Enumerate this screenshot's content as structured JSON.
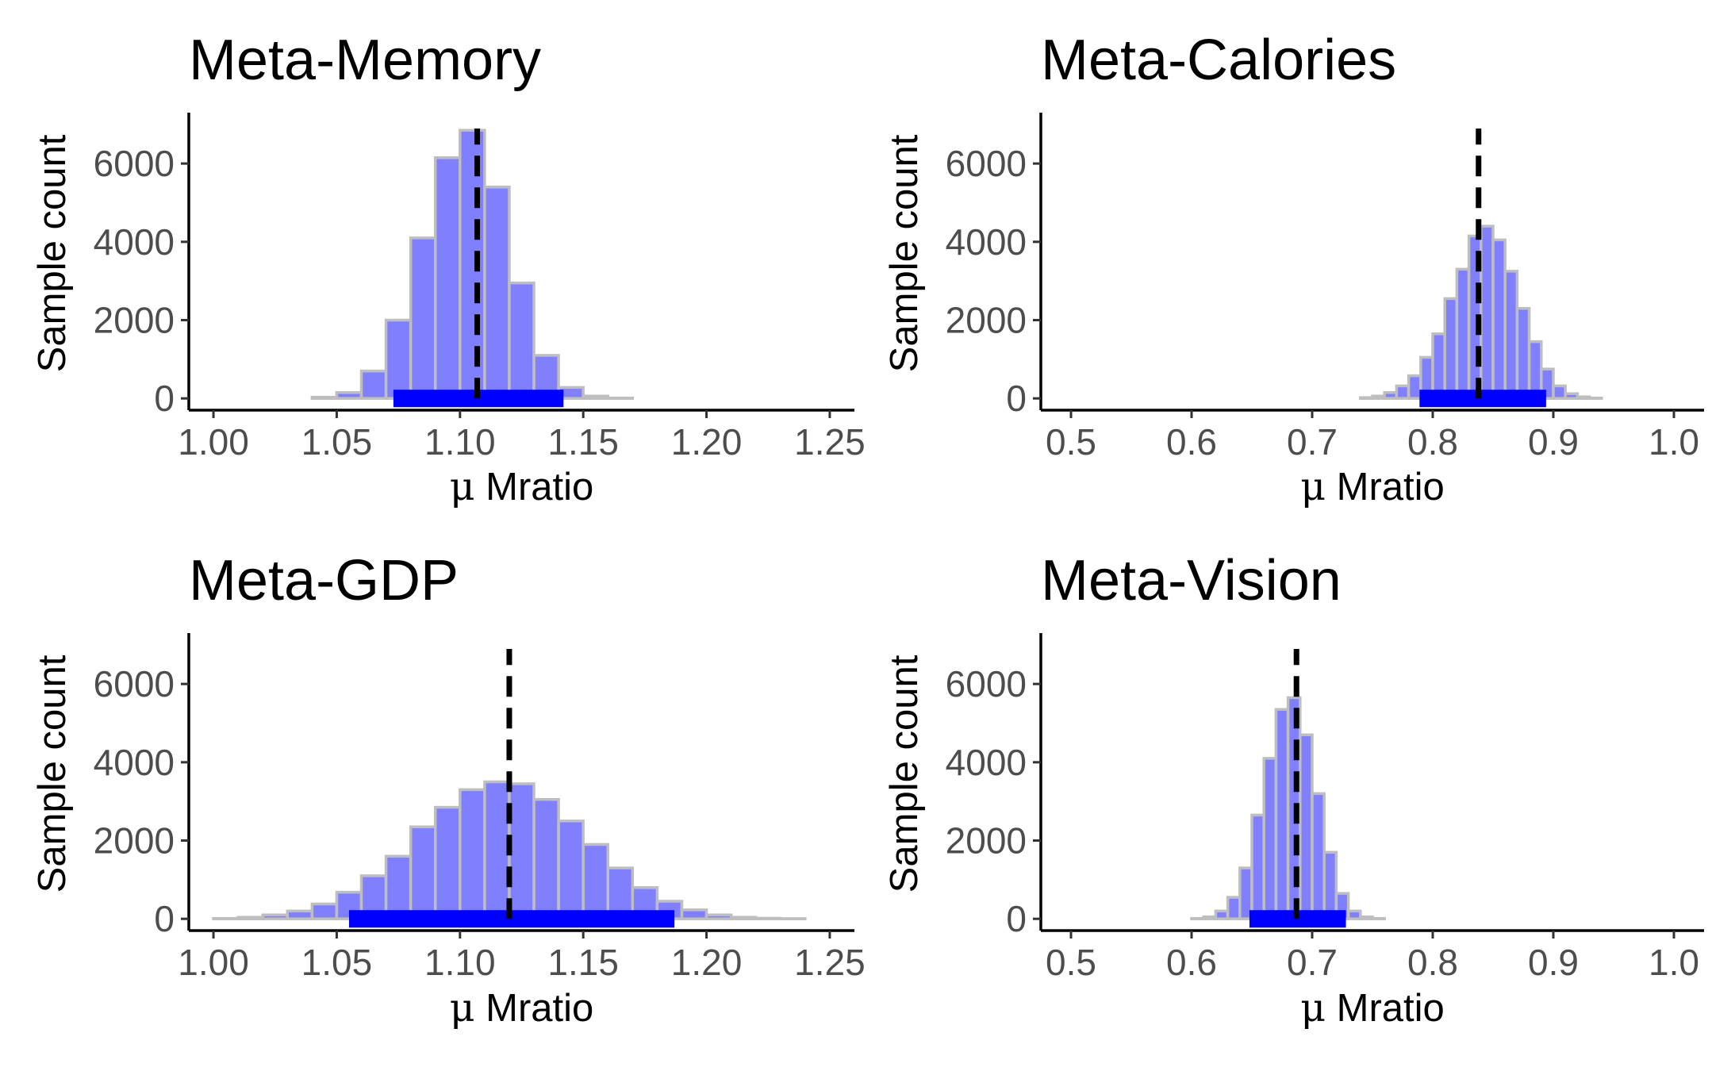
{
  "chart_data": [
    {
      "type": "histogram",
      "title": "Meta-Memory",
      "xlabel_symbol": "μ",
      "xlabel": "Mratio",
      "ylabel": "Sample count",
      "xlim": [
        0.99,
        1.26
      ],
      "ylim": [
        -300,
        7300
      ],
      "xticks": [
        1.0,
        1.05,
        1.1,
        1.15,
        1.2,
        1.25
      ],
      "xtick_labels": [
        "1.00",
        "1.05",
        "1.10",
        "1.15",
        "1.20",
        "1.25"
      ],
      "yticks": [
        0,
        2000,
        4000,
        6000
      ],
      "ytick_labels": [
        "0",
        "2000",
        "4000",
        "6000"
      ],
      "bin_width": 0.01,
      "bins": [
        {
          "x": 1.005,
          "count": 0
        },
        {
          "x": 1.015,
          "count": 0
        },
        {
          "x": 1.025,
          "count": 0
        },
        {
          "x": 1.035,
          "count": 0
        },
        {
          "x": 1.045,
          "count": 30
        },
        {
          "x": 1.055,
          "count": 150
        },
        {
          "x": 1.065,
          "count": 700
        },
        {
          "x": 1.075,
          "count": 2000
        },
        {
          "x": 1.085,
          "count": 4100
        },
        {
          "x": 1.095,
          "count": 6150
        },
        {
          "x": 1.105,
          "count": 6850
        },
        {
          "x": 1.115,
          "count": 5400
        },
        {
          "x": 1.125,
          "count": 2950
        },
        {
          "x": 1.135,
          "count": 1100
        },
        {
          "x": 1.145,
          "count": 280
        },
        {
          "x": 1.155,
          "count": 60
        },
        {
          "x": 1.165,
          "count": 10
        },
        {
          "x": 1.175,
          "count": 0
        },
        {
          "x": 1.185,
          "count": 0
        },
        {
          "x": 1.195,
          "count": 0
        },
        {
          "x": 1.205,
          "count": 0
        },
        {
          "x": 1.215,
          "count": 0
        },
        {
          "x": 1.225,
          "count": 0
        },
        {
          "x": 1.235,
          "count": 0
        },
        {
          "x": 1.245,
          "count": 0
        }
      ],
      "mean": 1.107,
      "hdi": [
        1.073,
        1.142
      ],
      "colors": {
        "fill": "#8080ff",
        "outline": "#bebebe",
        "hdi": "#0000ff",
        "mean_line": "#000000"
      }
    },
    {
      "type": "histogram",
      "title": "Meta-Calories",
      "xlabel_symbol": "μ",
      "xlabel": "Mratio",
      "ylabel": "Sample count",
      "xlim": [
        0.475,
        1.025
      ],
      "ylim": [
        -300,
        7300
      ],
      "xticks": [
        0.5,
        0.6,
        0.7,
        0.8,
        0.9,
        1.0
      ],
      "xtick_labels": [
        "0.5",
        "0.6",
        "0.7",
        "0.8",
        "0.9",
        "1.0"
      ],
      "yticks": [
        0,
        2000,
        4000,
        6000
      ],
      "ytick_labels": [
        "0",
        "2000",
        "4000",
        "6000"
      ],
      "bin_width": 0.01,
      "bins": [
        {
          "x": 0.505,
          "count": 0
        },
        {
          "x": 0.515,
          "count": 0
        },
        {
          "x": 0.525,
          "count": 0
        },
        {
          "x": 0.535,
          "count": 0
        },
        {
          "x": 0.545,
          "count": 0
        },
        {
          "x": 0.555,
          "count": 0
        },
        {
          "x": 0.565,
          "count": 0
        },
        {
          "x": 0.575,
          "count": 0
        },
        {
          "x": 0.585,
          "count": 0
        },
        {
          "x": 0.595,
          "count": 0
        },
        {
          "x": 0.605,
          "count": 0
        },
        {
          "x": 0.615,
          "count": 0
        },
        {
          "x": 0.625,
          "count": 0
        },
        {
          "x": 0.635,
          "count": 0
        },
        {
          "x": 0.645,
          "count": 0
        },
        {
          "x": 0.655,
          "count": 0
        },
        {
          "x": 0.665,
          "count": 0
        },
        {
          "x": 0.675,
          "count": 0
        },
        {
          "x": 0.685,
          "count": 0
        },
        {
          "x": 0.695,
          "count": 0
        },
        {
          "x": 0.705,
          "count": 0
        },
        {
          "x": 0.715,
          "count": 0
        },
        {
          "x": 0.725,
          "count": 0
        },
        {
          "x": 0.735,
          "count": 0
        },
        {
          "x": 0.745,
          "count": 20
        },
        {
          "x": 0.755,
          "count": 60
        },
        {
          "x": 0.765,
          "count": 150
        },
        {
          "x": 0.775,
          "count": 320
        },
        {
          "x": 0.785,
          "count": 580
        },
        {
          "x": 0.795,
          "count": 1050
        },
        {
          "x": 0.805,
          "count": 1650
        },
        {
          "x": 0.815,
          "count": 2550
        },
        {
          "x": 0.825,
          "count": 3300
        },
        {
          "x": 0.835,
          "count": 4150
        },
        {
          "x": 0.845,
          "count": 4400
        },
        {
          "x": 0.855,
          "count": 4050
        },
        {
          "x": 0.865,
          "count": 3250
        },
        {
          "x": 0.875,
          "count": 2300
        },
        {
          "x": 0.885,
          "count": 1450
        },
        {
          "x": 0.895,
          "count": 750
        },
        {
          "x": 0.905,
          "count": 320
        },
        {
          "x": 0.915,
          "count": 120
        },
        {
          "x": 0.925,
          "count": 40
        },
        {
          "x": 0.935,
          "count": 10
        },
        {
          "x": 0.945,
          "count": 0
        },
        {
          "x": 0.955,
          "count": 0
        },
        {
          "x": 0.965,
          "count": 0
        },
        {
          "x": 0.975,
          "count": 0
        },
        {
          "x": 0.985,
          "count": 0
        },
        {
          "x": 0.995,
          "count": 0
        }
      ],
      "mean": 0.838,
      "hdi": [
        0.789,
        0.894
      ],
      "colors": {
        "fill": "#8080ff",
        "outline": "#bebebe",
        "hdi": "#0000ff",
        "mean_line": "#000000"
      }
    },
    {
      "type": "histogram",
      "title": "Meta-GDP",
      "xlabel_symbol": "μ",
      "xlabel": "Mratio",
      "ylabel": "Sample count",
      "xlim": [
        0.99,
        1.26
      ],
      "ylim": [
        -300,
        7300
      ],
      "xticks": [
        1.0,
        1.05,
        1.1,
        1.15,
        1.2,
        1.25
      ],
      "xtick_labels": [
        "1.00",
        "1.05",
        "1.10",
        "1.15",
        "1.20",
        "1.25"
      ],
      "yticks": [
        0,
        2000,
        4000,
        6000
      ],
      "ytick_labels": [
        "0",
        "2000",
        "4000",
        "6000"
      ],
      "bin_width": 0.01,
      "bins": [
        {
          "x": 1.005,
          "count": 10
        },
        {
          "x": 1.015,
          "count": 40
        },
        {
          "x": 1.025,
          "count": 100
        },
        {
          "x": 1.035,
          "count": 200
        },
        {
          "x": 1.045,
          "count": 380
        },
        {
          "x": 1.055,
          "count": 680
        },
        {
          "x": 1.065,
          "count": 1100
        },
        {
          "x": 1.075,
          "count": 1600
        },
        {
          "x": 1.085,
          "count": 2350
        },
        {
          "x": 1.095,
          "count": 2850
        },
        {
          "x": 1.105,
          "count": 3300
        },
        {
          "x": 1.115,
          "count": 3500
        },
        {
          "x": 1.125,
          "count": 3450
        },
        {
          "x": 1.135,
          "count": 3050
        },
        {
          "x": 1.145,
          "count": 2500
        },
        {
          "x": 1.155,
          "count": 1900
        },
        {
          "x": 1.165,
          "count": 1300
        },
        {
          "x": 1.175,
          "count": 800
        },
        {
          "x": 1.185,
          "count": 450
        },
        {
          "x": 1.195,
          "count": 230
        },
        {
          "x": 1.205,
          "count": 100
        },
        {
          "x": 1.215,
          "count": 40
        },
        {
          "x": 1.225,
          "count": 15
        },
        {
          "x": 1.235,
          "count": 5
        },
        {
          "x": 1.245,
          "count": 0
        }
      ],
      "mean": 1.12,
      "hdi": [
        1.055,
        1.187
      ],
      "colors": {
        "fill": "#8080ff",
        "outline": "#bebebe",
        "hdi": "#0000ff",
        "mean_line": "#000000"
      }
    },
    {
      "type": "histogram",
      "title": "Meta-Vision",
      "xlabel_symbol": "μ",
      "xlabel": "Mratio",
      "ylabel": "Sample count",
      "xlim": [
        0.475,
        1.025
      ],
      "ylim": [
        -300,
        7300
      ],
      "xticks": [
        0.5,
        0.6,
        0.7,
        0.8,
        0.9,
        1.0
      ],
      "xtick_labels": [
        "0.5",
        "0.6",
        "0.7",
        "0.8",
        "0.9",
        "1.0"
      ],
      "yticks": [
        0,
        2000,
        4000,
        6000
      ],
      "ytick_labels": [
        "0",
        "2000",
        "4000",
        "6000"
      ],
      "bin_width": 0.01,
      "bins": [
        {
          "x": 0.505,
          "count": 0
        },
        {
          "x": 0.515,
          "count": 0
        },
        {
          "x": 0.525,
          "count": 0
        },
        {
          "x": 0.535,
          "count": 0
        },
        {
          "x": 0.545,
          "count": 0
        },
        {
          "x": 0.555,
          "count": 0
        },
        {
          "x": 0.565,
          "count": 0
        },
        {
          "x": 0.575,
          "count": 0
        },
        {
          "x": 0.585,
          "count": 0
        },
        {
          "x": 0.595,
          "count": 0
        },
        {
          "x": 0.605,
          "count": 10
        },
        {
          "x": 0.615,
          "count": 50
        },
        {
          "x": 0.625,
          "count": 200
        },
        {
          "x": 0.635,
          "count": 550
        },
        {
          "x": 0.645,
          "count": 1300
        },
        {
          "x": 0.655,
          "count": 2650
        },
        {
          "x": 0.665,
          "count": 4100
        },
        {
          "x": 0.675,
          "count": 5350
        },
        {
          "x": 0.685,
          "count": 5650
        },
        {
          "x": 0.695,
          "count": 4700
        },
        {
          "x": 0.705,
          "count": 3200
        },
        {
          "x": 0.715,
          "count": 1700
        },
        {
          "x": 0.725,
          "count": 650
        },
        {
          "x": 0.735,
          "count": 200
        },
        {
          "x": 0.745,
          "count": 50
        },
        {
          "x": 0.755,
          "count": 10
        },
        {
          "x": 0.765,
          "count": 0
        },
        {
          "x": 0.775,
          "count": 0
        },
        {
          "x": 0.785,
          "count": 0
        },
        {
          "x": 0.795,
          "count": 0
        },
        {
          "x": 0.805,
          "count": 0
        },
        {
          "x": 0.815,
          "count": 0
        },
        {
          "x": 0.825,
          "count": 0
        },
        {
          "x": 0.835,
          "count": 0
        },
        {
          "x": 0.845,
          "count": 0
        },
        {
          "x": 0.855,
          "count": 0
        },
        {
          "x": 0.865,
          "count": 0
        },
        {
          "x": 0.875,
          "count": 0
        },
        {
          "x": 0.885,
          "count": 0
        },
        {
          "x": 0.895,
          "count": 0
        },
        {
          "x": 0.905,
          "count": 0
        },
        {
          "x": 0.915,
          "count": 0
        },
        {
          "x": 0.925,
          "count": 0
        },
        {
          "x": 0.935,
          "count": 0
        },
        {
          "x": 0.945,
          "count": 0
        },
        {
          "x": 0.955,
          "count": 0
        },
        {
          "x": 0.965,
          "count": 0
        },
        {
          "x": 0.975,
          "count": 0
        },
        {
          "x": 0.985,
          "count": 0
        },
        {
          "x": 0.995,
          "count": 0
        }
      ],
      "mean": 0.687,
      "hdi": [
        0.648,
        0.728
      ],
      "colors": {
        "fill": "#8080ff",
        "outline": "#bebebe",
        "hdi": "#0000ff",
        "mean_line": "#000000"
      }
    }
  ]
}
